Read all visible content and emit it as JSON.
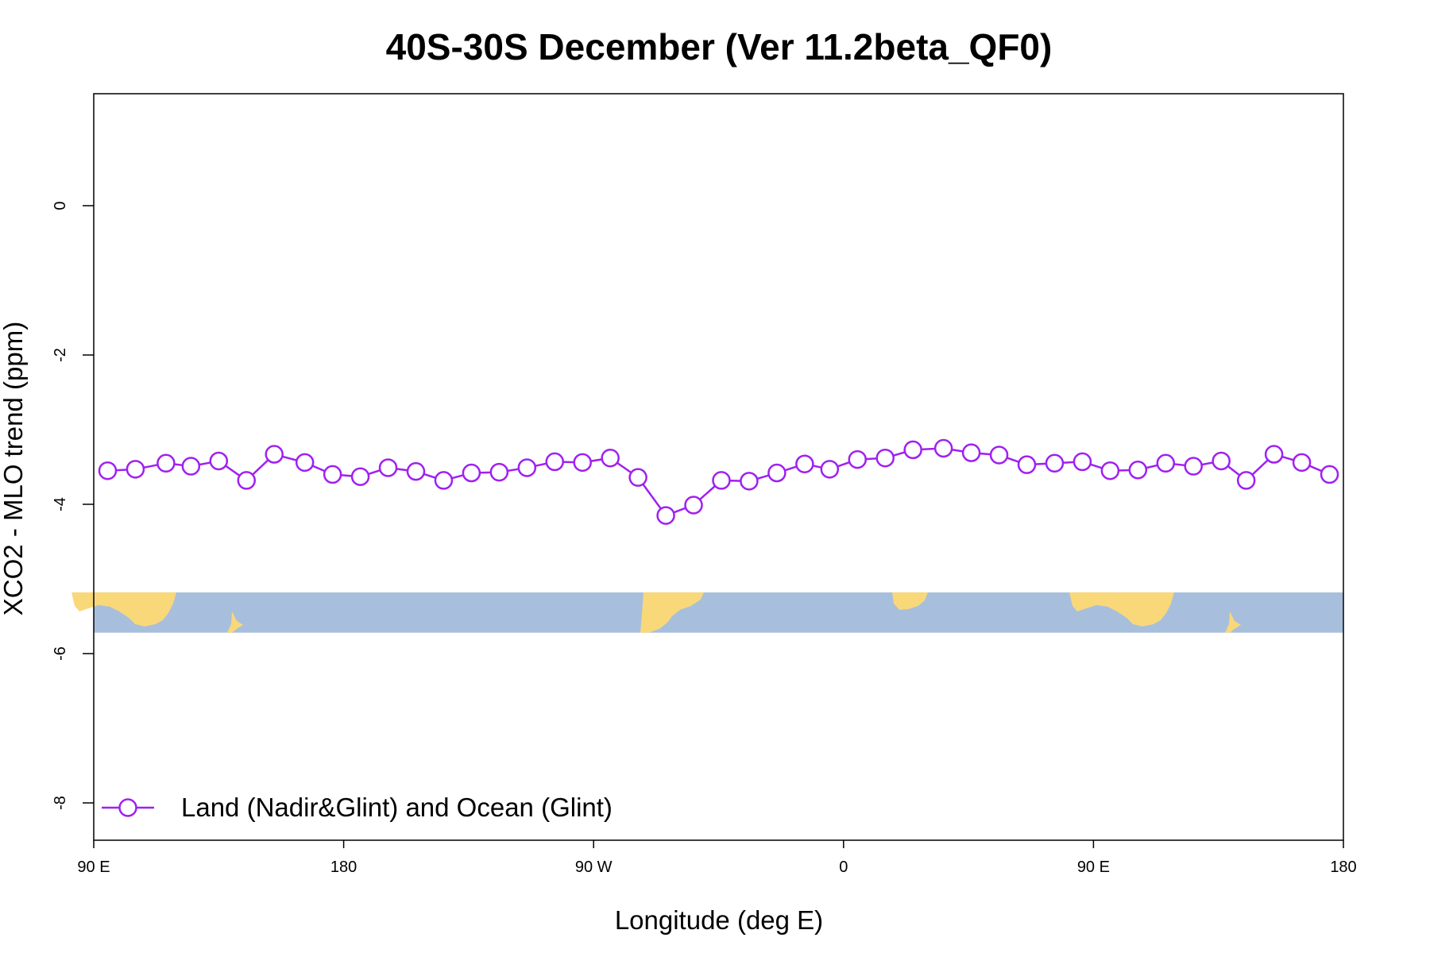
{
  "chart_data": {
    "type": "line",
    "title": "40S-30S December (Ver 11.2beta_QF0)",
    "xlabel": "Longitude (deg E)",
    "ylabel": "XCO2 - MLO trend (ppm)",
    "xlim": [
      90,
      540
    ],
    "ylim": [
      -8.5,
      1.5
    ],
    "x_ticks": [
      {
        "value": 90,
        "label": "90 E"
      },
      {
        "value": 180,
        "label": "180"
      },
      {
        "value": 270,
        "label": "90 W"
      },
      {
        "value": 360,
        "label": "0"
      },
      {
        "value": 450,
        "label": "90 E"
      },
      {
        "value": 540,
        "label": "180"
      }
    ],
    "y_ticks": [
      {
        "value": 0,
        "label": "0"
      },
      {
        "value": -2,
        "label": "-2"
      },
      {
        "value": -4,
        "label": "-4"
      },
      {
        "value": -6,
        "label": "-6"
      },
      {
        "value": -8,
        "label": "-8"
      }
    ],
    "legend": {
      "position": "bottom-left"
    },
    "series": [
      {
        "name": "Land (Nadir&Glint) and Ocean (Glint)",
        "color": "#a020f0",
        "marker": "open-circle",
        "x": [
          95,
          105,
          116,
          125,
          135,
          145,
          155,
          166,
          176,
          186,
          196,
          206,
          216,
          226,
          236,
          246,
          256,
          266,
          276,
          286,
          296,
          306,
          316,
          326,
          336,
          346,
          355,
          365,
          375,
          385,
          396,
          406,
          416,
          426,
          436,
          446,
          456,
          466,
          476,
          486,
          496,
          505,
          515,
          525,
          535
        ],
        "y": [
          -3.55,
          -3.53,
          -3.45,
          -3.49,
          -3.42,
          -3.68,
          -3.33,
          -3.44,
          -3.6,
          -3.63,
          -3.51,
          -3.56,
          -3.68,
          -3.58,
          -3.57,
          -3.51,
          -3.43,
          -3.44,
          -3.38,
          -3.64,
          -4.15,
          -4.01,
          -3.68,
          -3.69,
          -3.58,
          -3.46,
          -3.53,
          -3.4,
          -3.38,
          -3.27,
          -3.25,
          -3.31,
          -3.34,
          -3.47,
          -3.45,
          -3.43,
          -3.55,
          -3.54,
          -3.45,
          -3.49,
          -3.42,
          -3.68,
          -3.33,
          -3.44,
          -3.6
        ]
      }
    ],
    "map_strip": {
      "y_range": [
        -5.72,
        -5.18
      ],
      "ocean_color": "#a7bfdc",
      "land_color": "#f9d87a"
    }
  }
}
